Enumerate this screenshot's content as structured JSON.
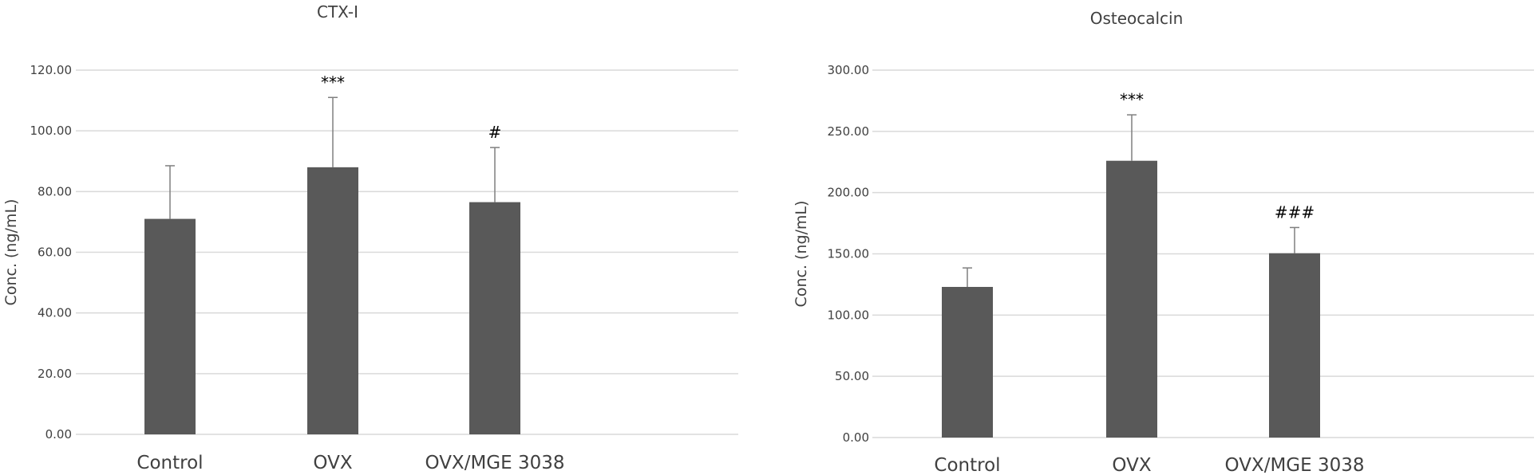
{
  "bar_color": "#595959",
  "grid_color": "#d9d9d9",
  "text_color": "#404040",
  "chart_data": [
    {
      "type": "bar",
      "title": "CTX-I",
      "xlabel": "",
      "ylabel": "Conc. (ng/mL)",
      "categories": [
        "Control",
        "OVX",
        "OVX/MGE 3038"
      ],
      "values": [
        71.0,
        88.0,
        76.5
      ],
      "error": [
        17.5,
        23.0,
        18.0
      ],
      "annotations": [
        "",
        "***",
        "#"
      ],
      "ylim": [
        0,
        120
      ],
      "yticks": [
        "0.00",
        "20.00",
        "40.00",
        "60.00",
        "80.00",
        "100.00",
        "120.00"
      ],
      "grid": true
    },
    {
      "type": "bar",
      "title": "Osteocalcin",
      "xlabel": "",
      "ylabel": "Conc. (ng/mL)",
      "categories": [
        "Control",
        "OVX",
        "OVX/MGE 3038"
      ],
      "values": [
        123.0,
        226.0,
        150.5
      ],
      "error": [
        15.5,
        37.5,
        21.0
      ],
      "annotations": [
        "",
        "***",
        "###"
      ],
      "ylim": [
        0,
        300
      ],
      "yticks": [
        "0.00",
        "50.00",
        "100.00",
        "150.00",
        "200.00",
        "250.00",
        "300.00"
      ],
      "grid": true
    }
  ]
}
